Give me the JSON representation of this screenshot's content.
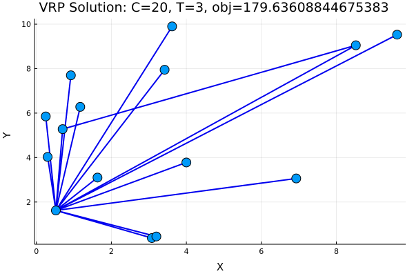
{
  "chart_data": {
    "type": "scatter",
    "title": "VRP Solution: C=20, T=3, obj=179.63608844675383",
    "xlabel": "X",
    "ylabel": "Y",
    "xlim": [
      -0.05,
      9.85
    ],
    "ylim": [
      0.1,
      10.25
    ],
    "xticks": [
      0,
      2,
      4,
      6,
      8
    ],
    "yticks": [
      2,
      4,
      6,
      8,
      10
    ],
    "xtick_labels": [
      "0",
      "2",
      "4",
      "6",
      "8"
    ],
    "ytick_labels": [
      "2",
      "4",
      "6",
      "8",
      "10"
    ],
    "grid": true,
    "legend": "none",
    "depot": {
      "x": 0.52,
      "y": 1.62
    },
    "points": [
      {
        "x": 0.52,
        "y": 1.62
      },
      {
        "x": 0.25,
        "y": 5.85
      },
      {
        "x": 0.3,
        "y": 4.03
      },
      {
        "x": 0.7,
        "y": 5.28
      },
      {
        "x": 0.92,
        "y": 7.7
      },
      {
        "x": 1.17,
        "y": 6.28
      },
      {
        "x": 1.63,
        "y": 3.1
      },
      {
        "x": 3.08,
        "y": 0.38
      },
      {
        "x": 3.2,
        "y": 0.45
      },
      {
        "x": 3.42,
        "y": 7.95
      },
      {
        "x": 3.62,
        "y": 9.9
      },
      {
        "x": 4.0,
        "y": 3.78
      },
      {
        "x": 6.93,
        "y": 3.06
      },
      {
        "x": 8.52,
        "y": 9.05
      },
      {
        "x": 9.62,
        "y": 9.53
      }
    ],
    "edges": [
      [
        [
          0.52,
          1.62
        ],
        [
          0.25,
          5.85
        ]
      ],
      [
        [
          0.52,
          1.62
        ],
        [
          0.3,
          4.03
        ]
      ],
      [
        [
          0.52,
          1.62
        ],
        [
          0.7,
          5.28
        ]
      ],
      [
        [
          0.7,
          5.28
        ],
        [
          8.52,
          9.05
        ]
      ],
      [
        [
          0.52,
          1.62
        ],
        [
          8.52,
          9.05
        ]
      ],
      [
        [
          0.52,
          1.62
        ],
        [
          0.92,
          7.7
        ]
      ],
      [
        [
          0.52,
          1.62
        ],
        [
          1.17,
          6.28
        ]
      ],
      [
        [
          0.52,
          1.62
        ],
        [
          1.63,
          3.1
        ]
      ],
      [
        [
          0.52,
          1.62
        ],
        [
          3.08,
          0.38
        ]
      ],
      [
        [
          0.52,
          1.62
        ],
        [
          3.2,
          0.45
        ]
      ],
      [
        [
          0.52,
          1.62
        ],
        [
          3.42,
          7.95
        ]
      ],
      [
        [
          0.52,
          1.62
        ],
        [
          3.62,
          9.9
        ]
      ],
      [
        [
          0.52,
          1.62
        ],
        [
          4.0,
          3.78
        ]
      ],
      [
        [
          0.52,
          1.62
        ],
        [
          6.93,
          3.06
        ]
      ],
      [
        [
          0.52,
          1.62
        ],
        [
          9.62,
          9.53
        ]
      ]
    ],
    "colors": {
      "route": "#0000ee",
      "node": "#009af9",
      "node_edge": "#000000"
    }
  }
}
